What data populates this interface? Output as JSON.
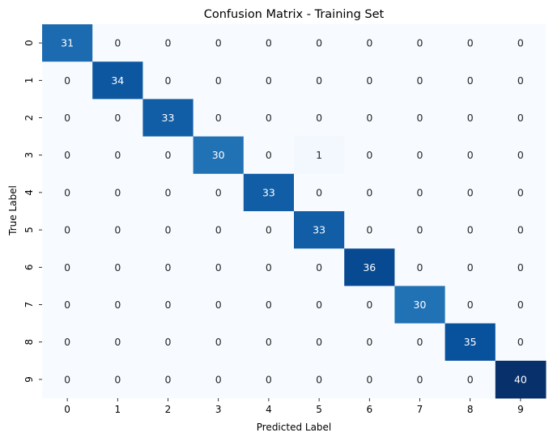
{
  "chart_data": {
    "type": "heatmap",
    "title": "Confusion Matrix - Training Set",
    "xlabel": "Predicted Label",
    "ylabel": "True Label",
    "x_categories": [
      "0",
      "1",
      "2",
      "3",
      "4",
      "5",
      "6",
      "7",
      "8",
      "9"
    ],
    "y_categories": [
      "0",
      "1",
      "2",
      "3",
      "4",
      "5",
      "6",
      "7",
      "8",
      "9"
    ],
    "values": [
      [
        31,
        0,
        0,
        0,
        0,
        0,
        0,
        0,
        0,
        0
      ],
      [
        0,
        34,
        0,
        0,
        0,
        0,
        0,
        0,
        0,
        0
      ],
      [
        0,
        0,
        33,
        0,
        0,
        0,
        0,
        0,
        0,
        0
      ],
      [
        0,
        0,
        0,
        30,
        0,
        1,
        0,
        0,
        0,
        0
      ],
      [
        0,
        0,
        0,
        0,
        33,
        0,
        0,
        0,
        0,
        0
      ],
      [
        0,
        0,
        0,
        0,
        0,
        33,
        0,
        0,
        0,
        0
      ],
      [
        0,
        0,
        0,
        0,
        0,
        0,
        36,
        0,
        0,
        0
      ],
      [
        0,
        0,
        0,
        0,
        0,
        0,
        0,
        30,
        0,
        0
      ],
      [
        0,
        0,
        0,
        0,
        0,
        0,
        0,
        0,
        35,
        0
      ],
      [
        0,
        0,
        0,
        0,
        0,
        0,
        0,
        0,
        0,
        40
      ]
    ],
    "colormap": "Blues",
    "value_range": [
      0,
      40
    ],
    "annotations": true,
    "colorbar": false,
    "grid": false
  }
}
